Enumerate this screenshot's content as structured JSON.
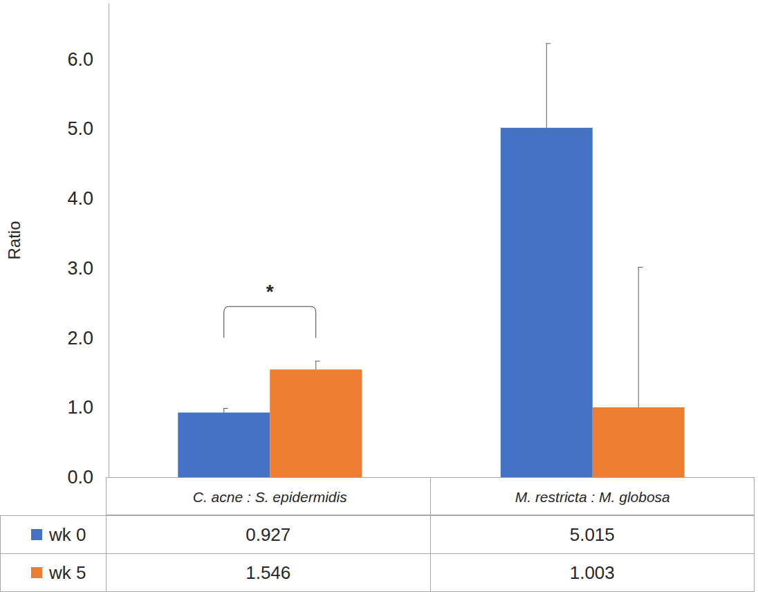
{
  "chart_data": {
    "type": "bar",
    "y_label": "Ratio",
    "categories": [
      "C. acne : S. epidermidis",
      "M. restricta : M. globosa"
    ],
    "series": [
      {
        "name": "wk 0",
        "color": "#4472c4",
        "values": [
          0.927,
          5.015
        ],
        "error": [
          0.06,
          1.21
        ]
      },
      {
        "name": "wk 5",
        "color": "#ed7d31",
        "values": [
          1.546,
          1.003
        ],
        "error": [
          0.12,
          2.01
        ]
      }
    ],
    "ylim": [
      0,
      6.8
    ],
    "yticks": [
      {
        "value": 0,
        "label": "0.0"
      },
      {
        "value": 1,
        "label": "1.0"
      },
      {
        "value": 2,
        "label": "2.0"
      },
      {
        "value": 3,
        "label": "3.0"
      },
      {
        "value": 4,
        "label": "4.0"
      },
      {
        "value": 5,
        "label": "5.0"
      },
      {
        "value": 6,
        "label": "6.0"
      }
    ],
    "grid": false,
    "annotations": [
      {
        "text": "*",
        "category": "C. acne : S. epidermidis",
        "series": [
          "wk 0",
          "wk 5"
        ],
        "y": 2.0,
        "y_top": 2.45
      }
    ]
  }
}
